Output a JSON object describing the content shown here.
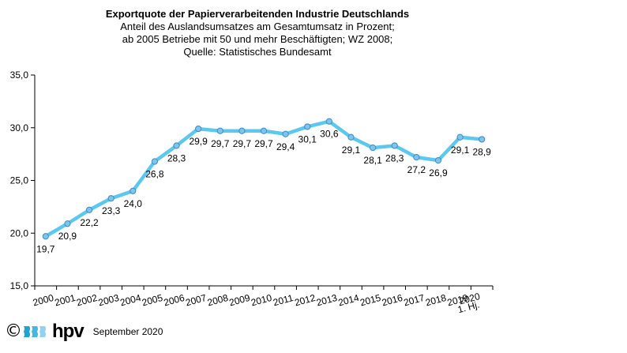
{
  "chart_data": {
    "type": "line",
    "title": "Exportquote der Papierverarbeitenden Industrie Deutschlands",
    "subtitle": [
      "Anteil des Auslandsumsatzes am Gesamtumsatz in Prozent;",
      "ab 2005 Betriebe mit 50 und mehr Beschäftigten; WZ 2008;",
      "Quelle: Statistisches Bundesamt"
    ],
    "xlabel": "",
    "ylabel": "",
    "categories": [
      "2000",
      "2001",
      "2002",
      "2003",
      "2004",
      "2005",
      "2006",
      "2007",
      "2008",
      "2009",
      "2010",
      "2011",
      "2012",
      "2013",
      "2014",
      "2015",
      "2016",
      "2017",
      "2018",
      "2019",
      "1. Hj. 2020"
    ],
    "series": [
      {
        "name": "Exportquote",
        "values": [
          19.7,
          20.9,
          22.2,
          23.3,
          24.0,
          26.8,
          28.3,
          29.9,
          29.7,
          29.7,
          29.7,
          29.4,
          30.1,
          30.6,
          29.1,
          28.1,
          28.3,
          27.2,
          26.9,
          29.1,
          28.9
        ],
        "data_labels": [
          "19,7",
          "20,9",
          "22,2",
          "23,3",
          "24,0",
          "26,8",
          "28,3",
          "29,9",
          "29,7",
          "29,7",
          "29,7",
          "29,4",
          "30,1",
          "30,6",
          "29,1",
          "28,1",
          "28,3",
          "27,2",
          "26,9",
          "29,1",
          "28,9"
        ],
        "color": "#5bc8f0",
        "marker_color": "#7fc4ea",
        "marker_edge": "#3a8cc8"
      }
    ],
    "ylim": [
      15.0,
      35.0
    ],
    "yticks": [
      15.0,
      20.0,
      25.0,
      30.0,
      35.0
    ],
    "ytick_labels": [
      "15,0",
      "20,0",
      "25,0",
      "30,0",
      "35,0"
    ],
    "grid": false,
    "legend": "none"
  },
  "footer": {
    "copyright": "©",
    "logo_text": "hpv",
    "date": "September 2020",
    "logo_colors": [
      "#1fa3d4",
      "#46b8e0",
      "#8fd3ee"
    ]
  }
}
